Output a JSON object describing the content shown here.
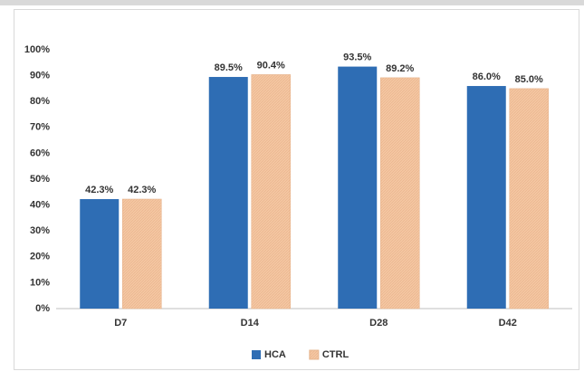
{
  "chart_data": {
    "type": "bar",
    "categories": [
      "D7",
      "D14",
      "D28",
      "D42"
    ],
    "series": [
      {
        "name": "HCA",
        "color": "#2e6db4",
        "values": [
          42.3,
          89.5,
          93.5,
          86.0
        ],
        "value_labels": [
          "42.3%",
          "89.5%",
          "93.5%",
          "86.0%"
        ]
      },
      {
        "name": "CTRL",
        "color": "#f4c7a2",
        "values": [
          42.3,
          90.4,
          89.2,
          85.0
        ],
        "value_labels": [
          "42.3%",
          "90.4%",
          "89.2%",
          "85.0%"
        ]
      }
    ],
    "ylim": [
      0,
      100
    ],
    "yticks": [
      {
        "value": 0,
        "label": "0%"
      },
      {
        "value": 10,
        "label": "10%"
      },
      {
        "value": 20,
        "label": "20%"
      },
      {
        "value": 30,
        "label": "30%"
      },
      {
        "value": 40,
        "label": "40%"
      },
      {
        "value": 50,
        "label": "50%"
      },
      {
        "value": 60,
        "label": "60%"
      },
      {
        "value": 70,
        "label": "70%"
      },
      {
        "value": 80,
        "label": "80%"
      },
      {
        "value": 90,
        "label": "90%"
      },
      {
        "value": 100,
        "label": "100%"
      }
    ],
    "grid": false,
    "legend": "bottom"
  }
}
